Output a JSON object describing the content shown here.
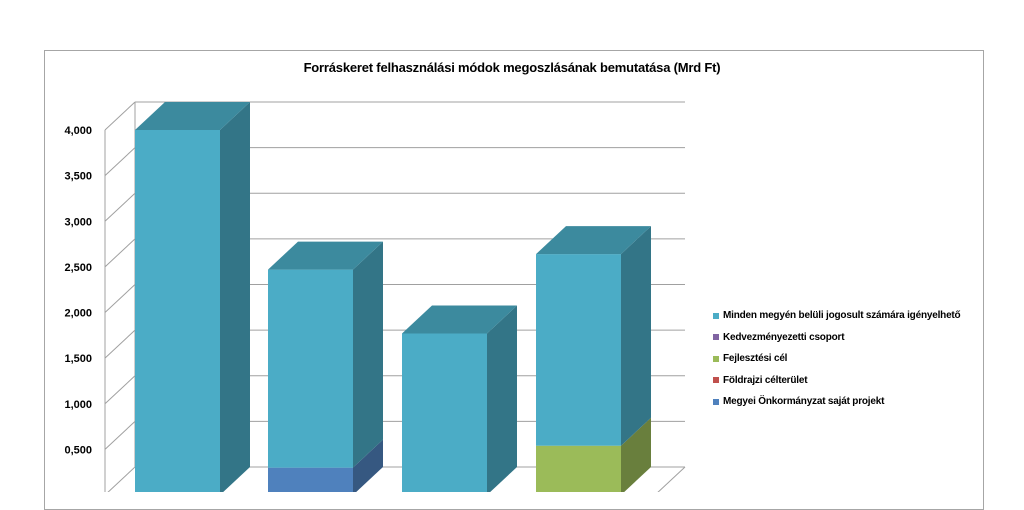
{
  "chart_data": {
    "type": "bar",
    "stacked": true,
    "three_d": true,
    "title": "Forráskeret felhasználási módok megoszlásának bemutatása (Mrd Ft)",
    "xlabel": "",
    "ylabel": "",
    "ylim": [
      0,
      4.0
    ],
    "yticks": [
      "0,500",
      "1,000",
      "1,500",
      "2,000",
      "2,500",
      "3,000",
      "3,500",
      "4,000"
    ],
    "ytick_values": [
      0.5,
      1.0,
      1.5,
      2.0,
      2.5,
      3.0,
      3.5,
      4.0
    ],
    "grid": true,
    "legend_position": "right",
    "categories": [
      "",
      "",
      "",
      ""
    ],
    "series": [
      {
        "name": "Megyei Önkormányzat saját projekt",
        "color": "#4f81bd",
        "values": [
          0,
          0.3,
          0,
          0
        ]
      },
      {
        "name": "Földrajzi célterület",
        "color": "#c0504d",
        "values": [
          0,
          0,
          0,
          0
        ]
      },
      {
        "name": "Fejlesztési cél",
        "color": "#9bbb59",
        "values": [
          0,
          0,
          0,
          0.54
        ]
      },
      {
        "name": "Kedvezményezetti csoport",
        "color": "#8064a2",
        "values": [
          0,
          0,
          0,
          0
        ]
      },
      {
        "name": "Minden megyén belüli jogosult számára igényelhető",
        "color": "#4bacc6",
        "values": [
          4.0,
          2.17,
          1.77,
          2.1
        ]
      }
    ],
    "legend_order": [
      "Minden megyén belüli jogosult számára igényelhető",
      "Kedvezményezetti csoport",
      "Fejlesztési cél",
      "Földrajzi célterület",
      "Megyei Önkormányzat saját projekt"
    ]
  }
}
